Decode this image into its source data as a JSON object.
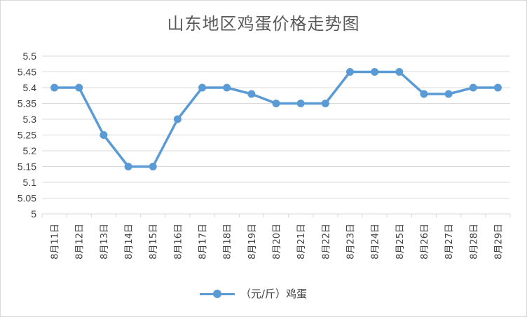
{
  "chart_data": {
    "type": "line",
    "title": "山东地区鸡蛋价格走势图",
    "categories": [
      "8月11日",
      "8月12日",
      "8月13日",
      "8月14日",
      "8月15日",
      "8月16日",
      "8月17日",
      "8月18日",
      "8月19日",
      "8月20日",
      "8月21日",
      "8月22日",
      "8月23日",
      "8月24日",
      "8月25日",
      "8月26日",
      "8月27日",
      "8月28日",
      "8月29日"
    ],
    "series": [
      {
        "name": "（元/斤）鸡蛋",
        "values": [
          5.4,
          5.4,
          5.25,
          5.15,
          5.15,
          5.3,
          5.4,
          5.4,
          5.38,
          5.35,
          5.35,
          5.35,
          5.45,
          5.45,
          5.45,
          5.38,
          5.38,
          5.4,
          5.4
        ]
      }
    ],
    "yticks": [
      "5",
      "5.05",
      "5.1",
      "5.15",
      "5.2",
      "5.25",
      "5.3",
      "5.35",
      "5.4",
      "5.45",
      "5.5"
    ],
    "ylim": [
      5,
      5.5
    ],
    "xlabel": "",
    "ylabel": "",
    "grid": true,
    "legend_position": "bottom",
    "colors": {
      "line": "#5b9bd5",
      "grid": "#d9d9d9"
    }
  }
}
